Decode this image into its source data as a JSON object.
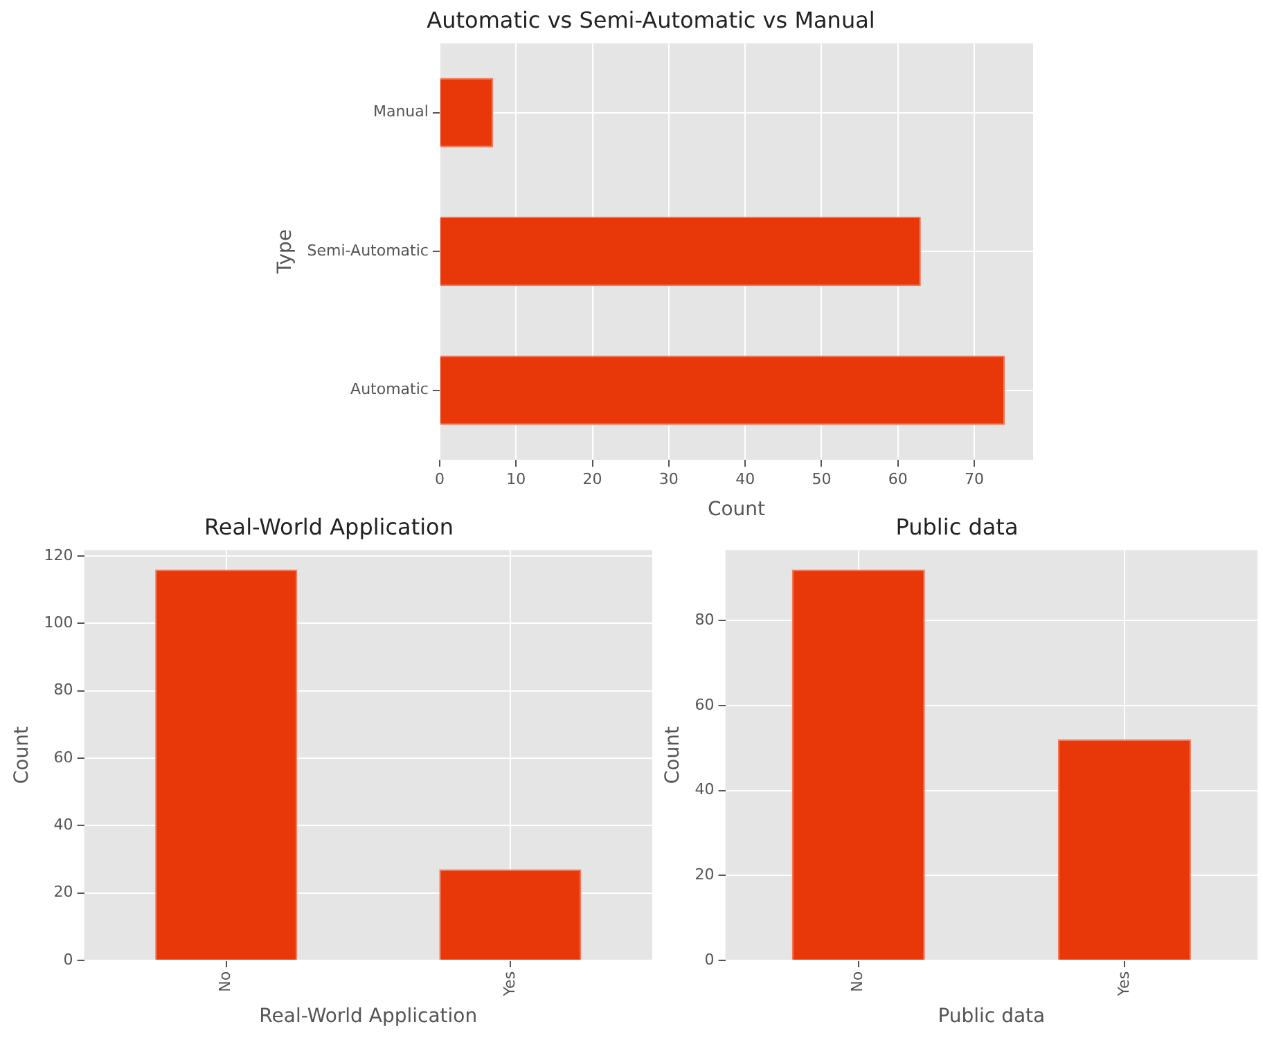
{
  "chart_data": [
    {
      "type": "bar",
      "orientation": "horizontal",
      "title": "Automatic vs Semi-Automatic vs Manual",
      "xlabel": "Count",
      "ylabel": "Type",
      "categories": [
        "Manual",
        "Semi-Automatic",
        "Automatic"
      ],
      "values": [
        7,
        63,
        74
      ],
      "color": "#e8380a",
      "xlim": [
        0,
        77.7
      ],
      "xticks": [
        0,
        10,
        20,
        30,
        40,
        50,
        60,
        70
      ],
      "grid": true
    },
    {
      "type": "bar",
      "title": "Real-World Application",
      "xlabel": "Real-World Application",
      "ylabel": "Count",
      "categories": [
        "No",
        "Yes"
      ],
      "values": [
        116,
        27
      ],
      "color": "#e8380a",
      "ylim": [
        0,
        121.8
      ],
      "yticks": [
        0,
        20,
        40,
        60,
        80,
        100,
        120
      ],
      "grid": true
    },
    {
      "type": "bar",
      "title": "Public data",
      "xlabel": "Public data",
      "ylabel": "Count",
      "categories": [
        "No",
        "Yes"
      ],
      "values": [
        92,
        52
      ],
      "color": "#e8380a",
      "ylim": [
        0,
        96.6
      ],
      "yticks": [
        0,
        20,
        40,
        60,
        80
      ],
      "grid": true
    }
  ]
}
